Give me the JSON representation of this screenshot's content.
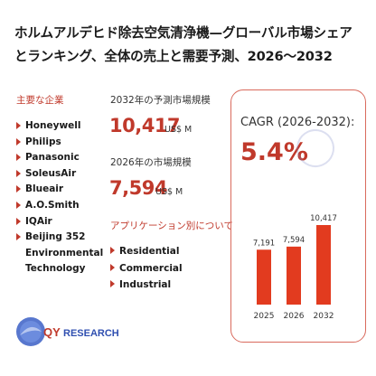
{
  "title_lines": [
    "ホルムアルデヒド除去空気清浄機—グローバル市場シェア",
    "とランキング、全体の売上と需要予測、2026〜2032"
  ],
  "companies_heading": "主要な企業",
  "companies": [
    "Honeywell",
    "Philips",
    "Panasonic",
    "SoleusAir",
    "Blueair",
    "A.O.Smith",
    "IQAir"
  ],
  "company_last": [
    "Beijing 352",
    "Environmental",
    "Technology"
  ],
  "metrics": {
    "forecast_label": "2032年の予測市場規模",
    "forecast_value": "10,417",
    "forecast_unit": "US$ M",
    "current_label": "2026年の市場規模",
    "current_value": "7,594",
    "current_unit": "US$ M"
  },
  "apps_heading": "アプリケーション別について",
  "applications": [
    "Residential",
    "Commercial",
    "Industrial"
  ],
  "cagr": {
    "label": "CAGR (2026-2032):",
    "value": "5.4%"
  },
  "colors": {
    "accent": "#c0392b",
    "bar": "#e23b1f",
    "box_border": "#d96a5d"
  },
  "watermark_text": "QY RESEARCH",
  "logo": {
    "text_q": "QY",
    "text_rest": "RESEARCH"
  },
  "chart_data": {
    "type": "bar",
    "categories": [
      "2025",
      "2026",
      "2032"
    ],
    "values": [
      7191,
      7594,
      10417
    ],
    "data_labels": [
      "7,191",
      "7,594",
      "10,417"
    ],
    "title": "",
    "xlabel": "",
    "ylabel": "",
    "grid": false,
    "legend": "none"
  }
}
